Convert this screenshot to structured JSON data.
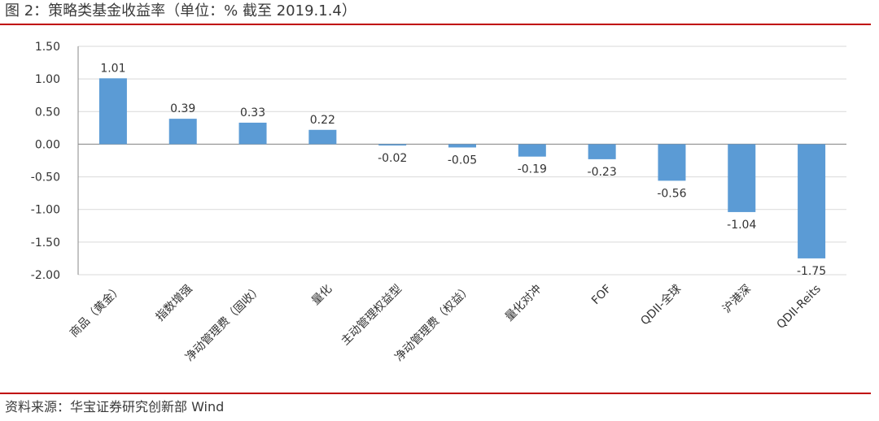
{
  "page": {
    "title": "图 2：策略类基金收益率（单位：% 截至 2019.1.4）",
    "source": "资料来源：华宝证券研究创新部 Wind"
  },
  "colors": {
    "accent": "#c00000",
    "bar": "#5b9bd5",
    "grid": "#d9d9d9",
    "axis": "#888888",
    "text": "#333333"
  },
  "chart_data": {
    "type": "bar",
    "categories": [
      "商品（黄金）",
      "指数增强",
      "净动管理费（固收）",
      "量化",
      "主动管理权益型",
      "净动管理费（权益）",
      "量化对冲",
      "FOF",
      "QDII-全球",
      "沪港深",
      "QDII-Reits"
    ],
    "values": [
      1.01,
      0.39,
      0.33,
      0.22,
      -0.02,
      -0.05,
      -0.19,
      -0.23,
      -0.56,
      -1.04,
      -1.75
    ],
    "data_labels": [
      "1.01",
      "0.39",
      "0.33",
      "0.22",
      "-0.02",
      "-0.05",
      "-0.19",
      "-0.23",
      "-0.56",
      "-1.04",
      "-1.75"
    ],
    "ylim": [
      -2.0,
      1.5
    ],
    "yticks": [
      1.5,
      1.0,
      0.5,
      0.0,
      -0.5,
      -1.0,
      -1.5,
      -2.0
    ],
    "ytick_labels": [
      "1.50",
      "1.00",
      "0.50",
      "0.00",
      "-0.50",
      "-1.00",
      "-1.50",
      "-2.00"
    ],
    "grid": true
  }
}
